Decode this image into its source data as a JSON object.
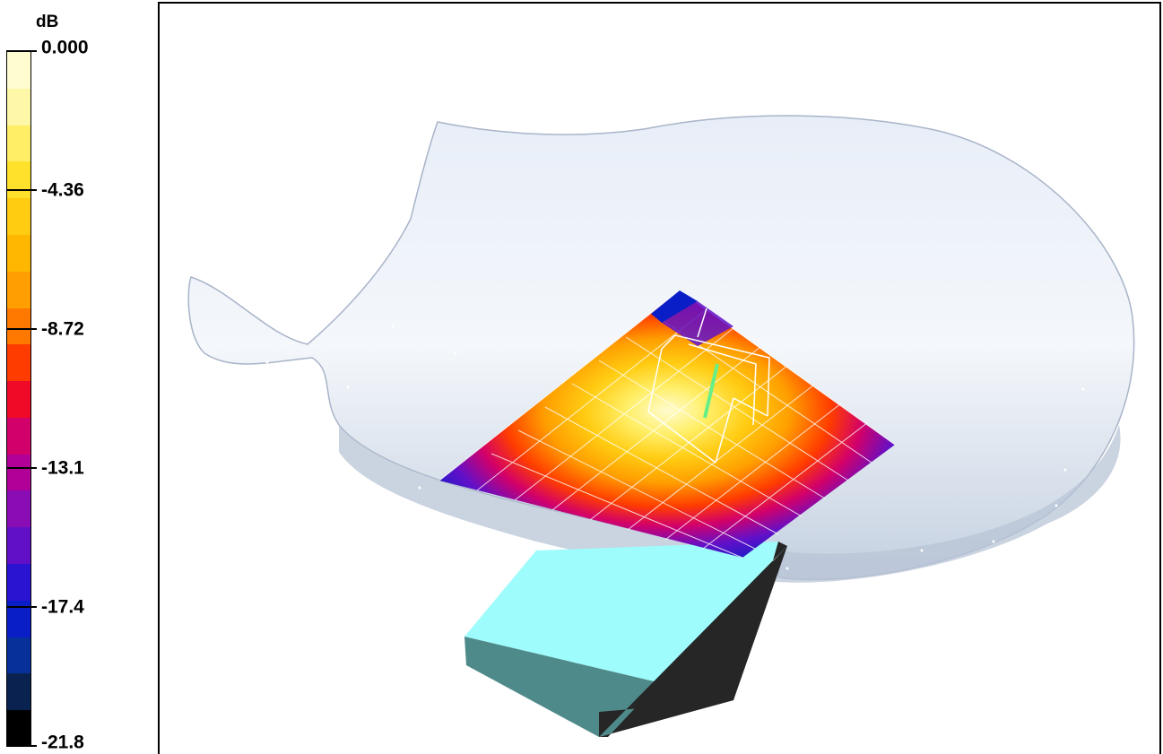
{
  "legend": {
    "unit": "dB",
    "ticks": [
      {
        "value": "0.000",
        "fraction": 0.0
      },
      {
        "value": "-4.36",
        "fraction": 0.2
      },
      {
        "value": "-8.72",
        "fraction": 0.4
      },
      {
        "value": "-13.1",
        "fraction": 0.6
      },
      {
        "value": "-17.4",
        "fraction": 0.8
      },
      {
        "value": "-21.8",
        "fraction": 1.0
      }
    ],
    "bands": [
      "#fffccf",
      "#fff7a8",
      "#ffee66",
      "#ffe02a",
      "#ffcc12",
      "#ffb700",
      "#ff9e00",
      "#ff7800",
      "#ff3c00",
      "#f00a28",
      "#d2006a",
      "#b00098",
      "#8a0cb4",
      "#6210c8",
      "#2a14d2",
      "#0a1ec8",
      "#08309a",
      "#0a2250",
      "#000000"
    ]
  },
  "colors": {
    "shell": "#dce6f2",
    "shell_edge": "#a8b4c8",
    "box_top": "#9ffcfc",
    "box_front": "#4f8a8a",
    "box_side": "#262626"
  },
  "icons": [
    "human-head-model-shape",
    "field-map-surface",
    "device-box-shape",
    "antenna-element-shape"
  ]
}
